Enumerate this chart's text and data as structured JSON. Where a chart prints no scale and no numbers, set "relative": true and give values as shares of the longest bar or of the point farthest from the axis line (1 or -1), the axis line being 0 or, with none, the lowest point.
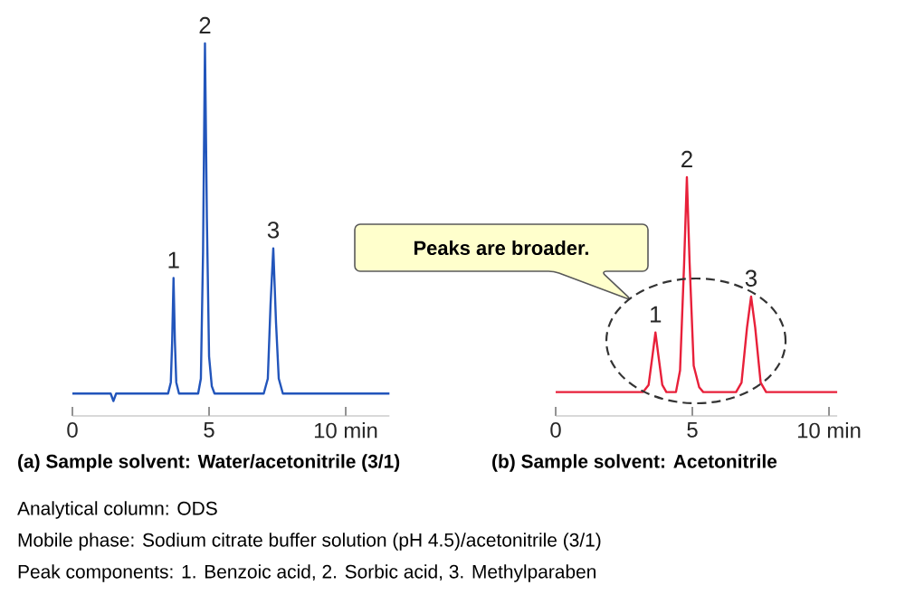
{
  "chart_data": [
    {
      "type": "line",
      "relative": true,
      "xlim": [
        0,
        11.6
      ],
      "xticks": [
        0,
        5,
        {
          "value": 10,
          "label": "10 min"
        }
      ],
      "tick_labels": "x",
      "xlabel": "(a) Sample solvent: Water/acetonitrile (3/1)",
      "series": [
        {
          "color": "#2255bb",
          "x": [
            0,
            1.4,
            1.5,
            1.6,
            3.5,
            3.6,
            3.65,
            3.7,
            3.75,
            3.8,
            3.9,
            4.6,
            4.7,
            4.78,
            4.85,
            4.92,
            5.0,
            5.1,
            5.2,
            7.0,
            7.15,
            7.25,
            7.35,
            7.45,
            7.55,
            7.7,
            11.6
          ],
          "values": [
            0.06,
            0.06,
            0.04,
            0.06,
            0.06,
            0.09,
            0.2,
            0.37,
            0.2,
            0.09,
            0.06,
            0.06,
            0.1,
            0.44,
            1,
            0.53,
            0.16,
            0.08,
            0.06,
            0.06,
            0.1,
            0.3,
            0.45,
            0.25,
            0.1,
            0.06,
            0.06
          ]
        }
      ],
      "annotations": [
        {
          "text": "1",
          "x": 3.7,
          "y": 0.37
        },
        {
          "text": "2",
          "x": 4.85,
          "y": 1
        },
        {
          "text": "3",
          "x": 7.35,
          "y": 0.45
        },
        "Analytical column: ODS",
        "Mobile phase: Sodium citrate buffer solution (pH 4.5)/acetonitrile (3/1)",
        "Peak components: 1. Benzoic acid, 2. Sorbic acid, 3. Methylparaben"
      ]
    },
    {
      "type": "line",
      "relative": true,
      "xlim": [
        0,
        10.3
      ],
      "xticks": [
        0,
        5,
        {
          "value": 10,
          "label": "10 min"
        }
      ],
      "tick_labels": "x",
      "xlabel": "(b) Sample solvent: Acetonitrile",
      "series": [
        {
          "color": "#e8203a",
          "x": [
            0,
            3.2,
            3.4,
            3.55,
            3.65,
            3.75,
            3.9,
            4.05,
            4.4,
            4.55,
            4.7,
            4.8,
            4.9,
            5.05,
            5.25,
            5.4,
            6.6,
            6.8,
            7.0,
            7.15,
            7.3,
            7.5,
            7.7,
            10.3
          ],
          "values": [
            0.1,
            0.1,
            0.13,
            0.26,
            0.35,
            0.26,
            0.13,
            0.1,
            0.1,
            0.19,
            0.64,
            1,
            0.64,
            0.21,
            0.12,
            0.1,
            0.1,
            0.14,
            0.37,
            0.5,
            0.37,
            0.14,
            0.1,
            0.1
          ]
        }
      ],
      "annotations": [
        {
          "text": "1",
          "x": 3.65,
          "y": 0.35
        },
        {
          "text": "2",
          "x": 4.8,
          "y": 1
        },
        {
          "text": "3",
          "x": 7.15,
          "y": 0.5
        },
        "Peaks are broader."
      ]
    }
  ]
}
